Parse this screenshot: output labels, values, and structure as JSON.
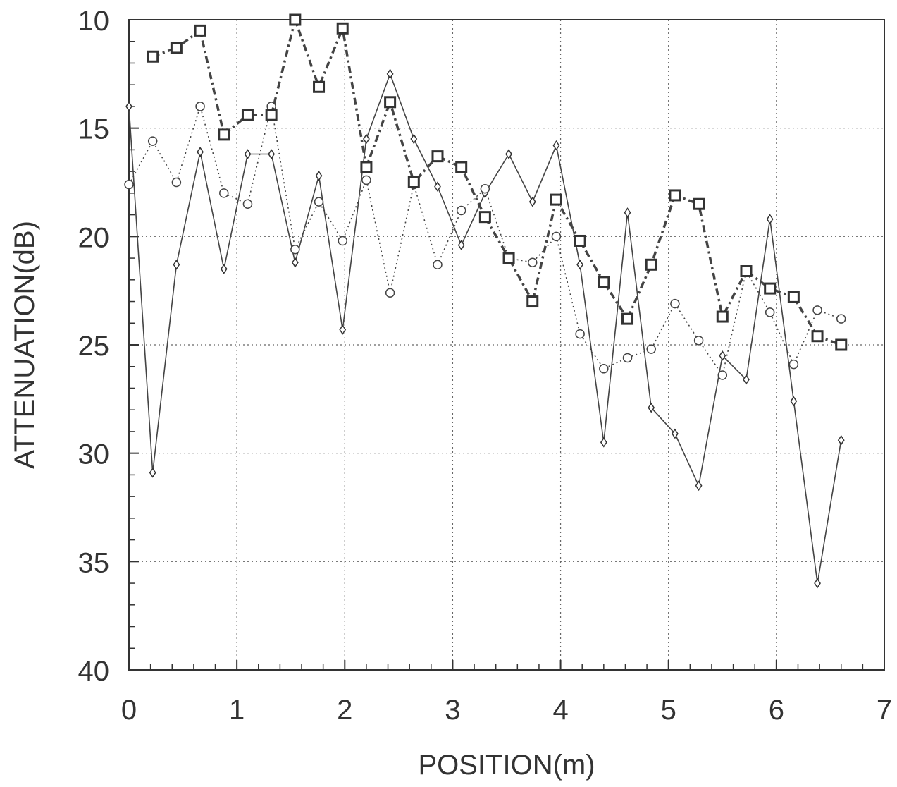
{
  "chart_data": {
    "type": "line",
    "xlabel": "POSITION(m)",
    "ylabel": "ATTENUATION(dB)",
    "xlim": [
      0,
      7
    ],
    "ylim": [
      10,
      40
    ],
    "y_inverted": true,
    "grid": true,
    "x_ticks": [
      0,
      1,
      2,
      3,
      4,
      5,
      6,
      7
    ],
    "y_ticks": [
      10,
      15,
      20,
      25,
      30,
      35,
      40
    ],
    "series": [
      {
        "marker": "diamond",
        "line_style": "solid",
        "x": [
          0.0,
          0.22,
          0.44,
          0.66,
          0.88,
          1.1,
          1.32,
          1.54,
          1.76,
          1.98,
          2.2,
          2.42,
          2.64,
          2.86,
          3.08,
          3.3,
          3.52,
          3.74,
          3.96,
          4.18,
          4.4,
          4.62,
          4.84,
          5.06,
          5.28,
          5.5,
          5.72,
          5.94,
          6.16,
          6.38,
          6.6
        ],
        "values": [
          14.0,
          30.9,
          21.3,
          16.1,
          21.5,
          16.2,
          16.2,
          21.2,
          17.2,
          24.3,
          15.5,
          12.5,
          15.5,
          17.7,
          20.4,
          18.0,
          16.2,
          18.4,
          15.8,
          21.3,
          29.5,
          18.9,
          27.9,
          29.1,
          31.5,
          25.5,
          26.6,
          19.2,
          27.6,
          36.0,
          29.4
        ]
      },
      {
        "marker": "circle",
        "line_style": "dotted",
        "x": [
          0.0,
          0.22,
          0.44,
          0.66,
          0.88,
          1.1,
          1.32,
          1.54,
          1.76,
          1.98,
          2.2,
          2.42,
          2.64,
          2.86,
          3.08,
          3.3,
          3.52,
          3.74,
          3.96,
          4.18,
          4.4,
          4.62,
          4.84,
          5.06,
          5.28,
          5.5,
          5.72,
          5.94,
          6.16,
          6.38,
          6.6
        ],
        "values": [
          17.6,
          15.6,
          17.5,
          14.0,
          18.0,
          18.5,
          14.0,
          20.6,
          18.4,
          20.2,
          17.4,
          22.6,
          17.6,
          21.3,
          18.8,
          17.8,
          21.0,
          21.2,
          20.0,
          24.5,
          26.1,
          25.6,
          25.2,
          23.1,
          24.8,
          26.4,
          21.6,
          23.5,
          25.9,
          23.4,
          23.8
        ]
      },
      {
        "marker": "square",
        "line_style": "dashed",
        "x": [
          0.22,
          0.44,
          0.66,
          0.88,
          1.1,
          1.32,
          1.54,
          1.76,
          1.98,
          2.2,
          2.42,
          2.64,
          2.86,
          3.08,
          3.3,
          3.52,
          3.74,
          3.96,
          4.18,
          4.4,
          4.62,
          4.84,
          5.06,
          5.28,
          5.5,
          5.72,
          5.94,
          6.16,
          6.38,
          6.6
        ],
        "values": [
          11.7,
          11.3,
          10.5,
          15.3,
          14.4,
          14.4,
          10.0,
          13.1,
          10.4,
          16.8,
          13.8,
          17.5,
          16.3,
          16.8,
          19.1,
          21.0,
          23.0,
          18.3,
          20.2,
          22.1,
          23.8,
          21.3,
          18.1,
          18.5,
          23.7,
          21.6,
          22.4,
          22.8,
          24.6,
          25.0
        ]
      }
    ]
  }
}
